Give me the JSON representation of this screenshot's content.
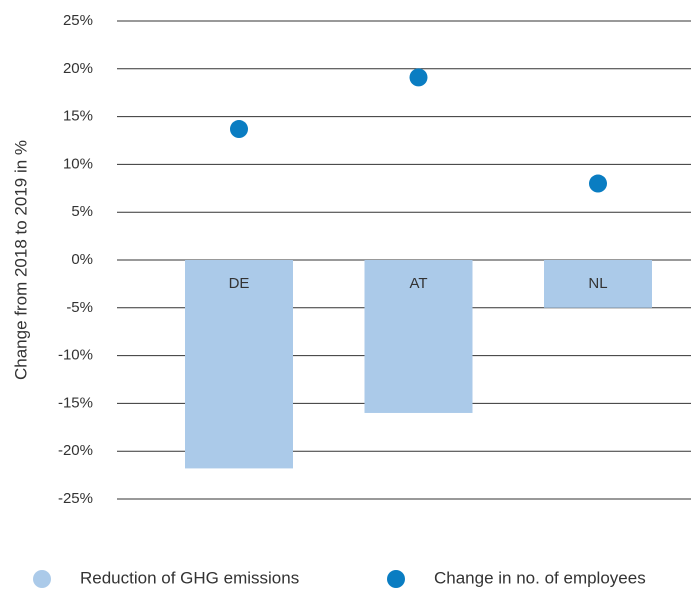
{
  "chart_data": {
    "type": "bar",
    "y_label": "Change from 2018 to 2019 in %",
    "categories": [
      "DE",
      "AT",
      "NL"
    ],
    "series": [
      {
        "name": "Reduction of GHG emissions",
        "color": "#abcae9",
        "type": "bar",
        "values": [
          -21.8,
          -16.0,
          -5.0
        ]
      },
      {
        "name": "Change in no. of employees",
        "color": "#0a7dc2",
        "type": "scatter",
        "values": [
          13.7,
          19.1,
          8.0
        ]
      }
    ],
    "ylim": [
      -25,
      25
    ],
    "yticks": [
      {
        "value": 25,
        "label": "25%"
      },
      {
        "value": 20,
        "label": "20%"
      },
      {
        "value": 15,
        "label": "15%"
      },
      {
        "value": 10,
        "label": "10%"
      },
      {
        "value": 5,
        "label": "5%"
      },
      {
        "value": 0,
        "label": "0%"
      },
      {
        "value": -5,
        "label": "-5%"
      },
      {
        "value": -10,
        "label": "-10%"
      },
      {
        "value": -15,
        "label": "-15%"
      },
      {
        "value": -20,
        "label": "-20%"
      },
      {
        "value": -25,
        "label": "-25%"
      }
    ],
    "grid": true
  }
}
